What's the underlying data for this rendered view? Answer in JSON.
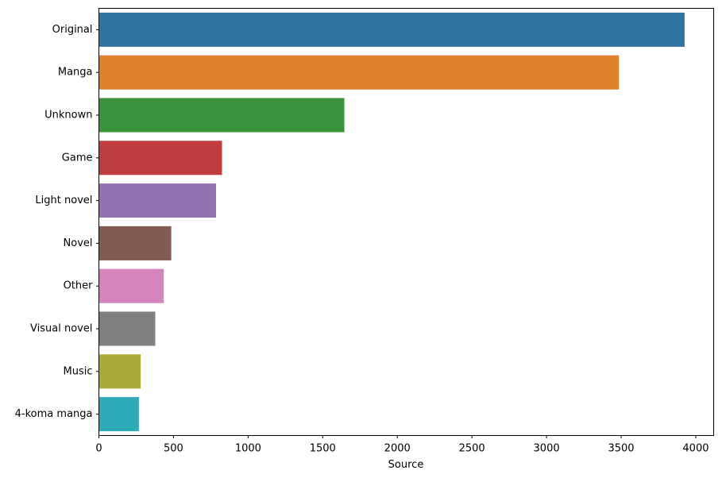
{
  "chart_data": {
    "type": "bar",
    "orientation": "horizontal",
    "title": "",
    "xlabel": "Source",
    "ylabel": "",
    "xlim": [
      0,
      4120
    ],
    "xticks": [
      0,
      500,
      1000,
      1500,
      2000,
      2500,
      3000,
      3500,
      4000
    ],
    "grid": false,
    "legend": "none",
    "categories": [
      "Original",
      "Manga",
      "Unknown",
      "Game",
      "Light novel",
      "Novel",
      "Other",
      "Visual novel",
      "Music",
      "4-koma manga"
    ],
    "values": [
      3925,
      3485,
      1645,
      825,
      785,
      485,
      435,
      378,
      280,
      268
    ],
    "colors": [
      "#3274a1",
      "#e1812c",
      "#3a923a",
      "#c03d3e",
      "#9372b2",
      "#845b53",
      "#d684bd",
      "#7f7f7f",
      "#a9aa35",
      "#2eabb8"
    ]
  }
}
